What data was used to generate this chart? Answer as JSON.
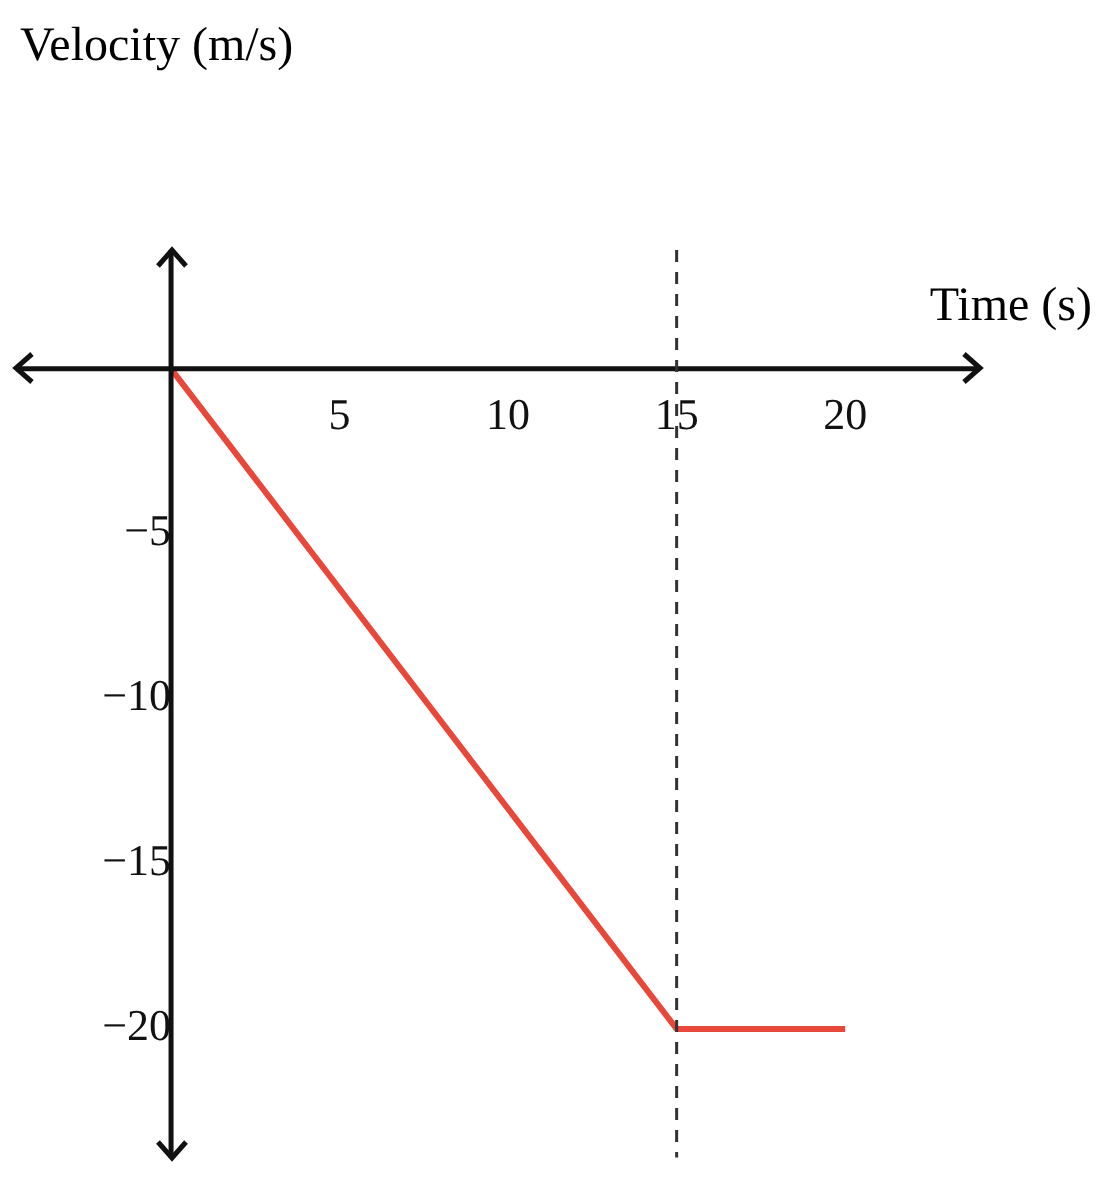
{
  "chart_data": {
    "type": "line",
    "xlabel": "Time (s)",
    "ylabel": "Velocity (m/s)",
    "x": [
      0,
      15,
      20
    ],
    "series": [
      {
        "color": "#e8483a",
        "values": [
          0,
          -20,
          -20
        ]
      }
    ],
    "xlim": [
      -4.6,
      24
    ],
    "ylim": [
      -23.9,
      3.6
    ],
    "xticks": [
      5,
      10,
      15,
      20
    ],
    "yticks": [
      -5,
      -10,
      -15,
      -20
    ],
    "ref_lines": [
      {
        "axis": "x",
        "value": 15,
        "line_style": "dashed",
        "color": "#333333"
      }
    ],
    "marker": "none",
    "line_style": "solid"
  }
}
